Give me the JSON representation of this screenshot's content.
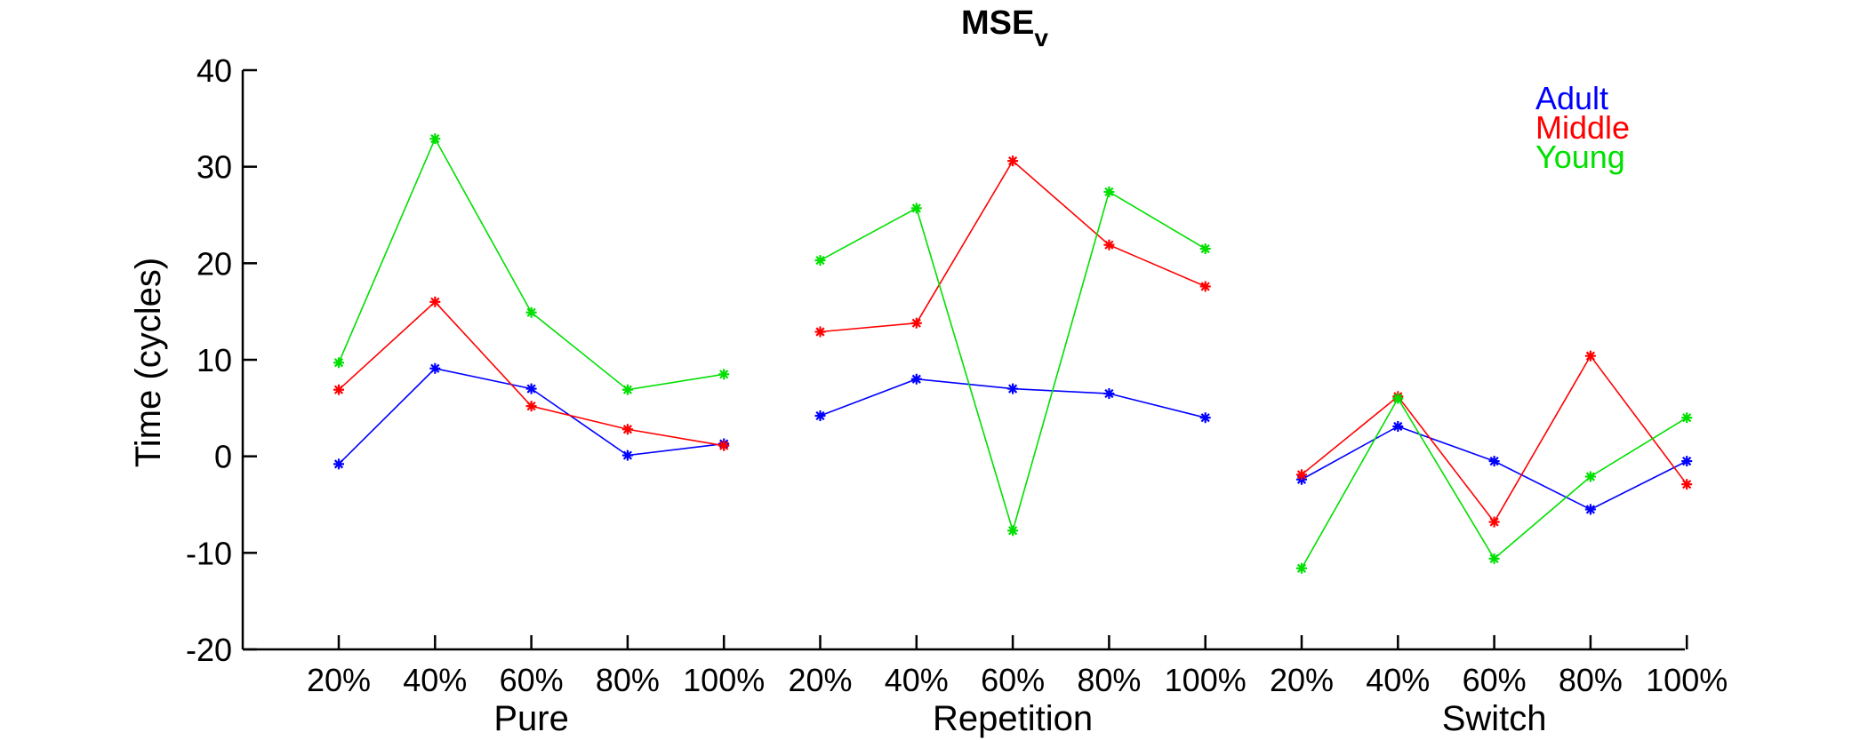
{
  "chart_data": {
    "type": "line",
    "title": "MSE",
    "title_subscript": "v",
    "xlabel": "",
    "ylabel": "Time (cycles)",
    "ylim": [
      -20,
      40
    ],
    "yticks": [
      -20,
      -10,
      0,
      10,
      20,
      30,
      40
    ],
    "grid": false,
    "legend_position": "top-right",
    "groups": [
      {
        "label": "Pure",
        "categories": [
          "20%",
          "40%",
          "60%",
          "80%",
          "100%"
        ]
      },
      {
        "label": "Repetition",
        "categories": [
          "20%",
          "40%",
          "60%",
          "80%",
          "100%"
        ]
      },
      {
        "label": "Switch",
        "categories": [
          "20%",
          "40%",
          "60%",
          "80%",
          "100%"
        ]
      }
    ],
    "series": [
      {
        "name": "Adult",
        "color": "#0000ff",
        "groups": [
          [
            -0.8,
            9.1,
            7.0,
            0.1,
            1.3
          ],
          [
            4.2,
            8.0,
            7.0,
            6.5,
            4.0
          ],
          [
            -2.4,
            3.1,
            -0.5,
            -5.5,
            -0.5
          ]
        ]
      },
      {
        "name": "Middle",
        "color": "#ff0000",
        "groups": [
          [
            6.9,
            16.0,
            5.2,
            2.8,
            1.1
          ],
          [
            12.9,
            13.8,
            30.6,
            21.9,
            17.6
          ],
          [
            -1.9,
            6.2,
            -6.8,
            10.4,
            -2.9
          ]
        ]
      },
      {
        "name": "Young",
        "color": "#00e000",
        "groups": [
          [
            9.7,
            32.9,
            14.9,
            6.9,
            8.5
          ],
          [
            20.3,
            25.7,
            -7.7,
            27.4,
            21.5
          ],
          [
            -11.6,
            6.0,
            -10.6,
            -2.1,
            4.0
          ]
        ]
      }
    ]
  }
}
